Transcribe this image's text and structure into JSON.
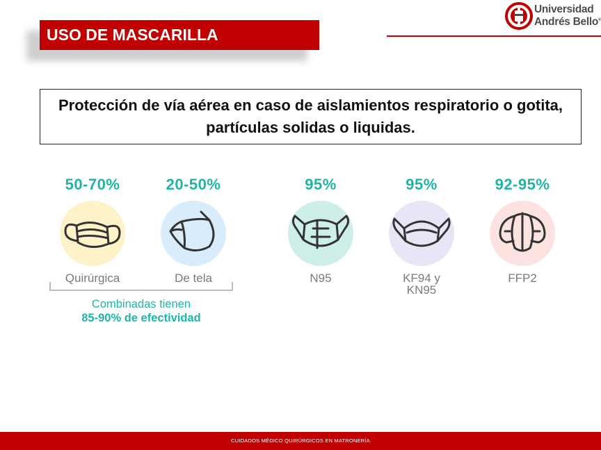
{
  "header": {
    "title": "USO DE MASCARILLA"
  },
  "logo": {
    "line1": "Universidad",
    "line2": "Andrés Bello",
    "mark": "®"
  },
  "subtitle": "Protección de vía aérea en caso de aislamientos respiratorio o gotita, partículas solidas o liquidas.",
  "masks": [
    {
      "percent": "50-70%",
      "label": "Quirúrgica",
      "circle_color": "#fdf2c8",
      "icon": "surgical-mask-icon"
    },
    {
      "percent": "20-50%",
      "label": "De tela",
      "circle_color": "#d8ecfb",
      "icon": "cloth-mask-icon"
    },
    {
      "percent": "95%",
      "label": "N95",
      "circle_color": "#cdeee9",
      "icon": "n95-mask-icon"
    },
    {
      "percent": "95%",
      "label": "KF94 y KN95",
      "circle_color": "#e8e6f6",
      "icon": "kf94-mask-icon"
    },
    {
      "percent": "92-95%",
      "label": "FFP2",
      "circle_color": "#fde3e0",
      "icon": "ffp2-mask-icon"
    }
  ],
  "combined": {
    "line1": "Combinadas tienen",
    "line2": "85-90% de efectividad"
  },
  "footer": {
    "text": "CUIDADOS MÉDICO QUIRÚRGICOS EN MATRONERÍA"
  },
  "colors": {
    "brand_red": "#c00000",
    "accent_teal": "#1fb5a6",
    "label_gray": "#7a7a7a"
  }
}
